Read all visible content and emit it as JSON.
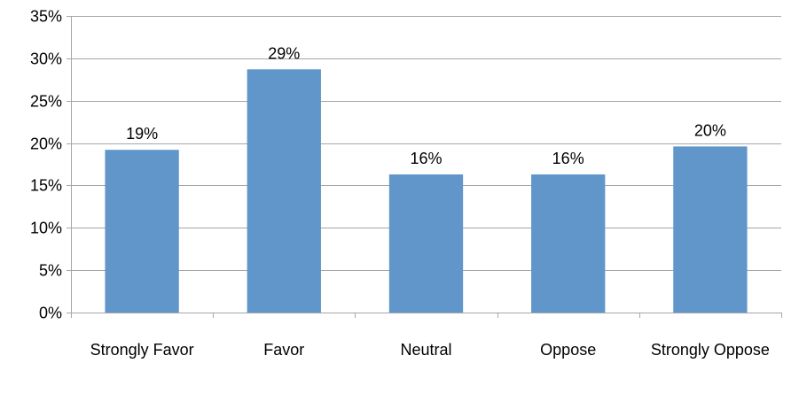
{
  "chart_data": {
    "type": "bar",
    "title": "",
    "xlabel": "",
    "ylabel": "",
    "categories": [
      "Strongly Favor",
      "Favor",
      "Neutral",
      "Oppose",
      "Strongly Oppose"
    ],
    "values": [
      19.2,
      28.7,
      16.3,
      16.3,
      19.6
    ],
    "data_labels": [
      "19%",
      "29%",
      "16%",
      "16%",
      "20%"
    ],
    "ylim": [
      0,
      35
    ],
    "y_ticks": [
      0,
      5,
      10,
      15,
      20,
      25,
      30,
      35
    ],
    "y_tick_labels": [
      "0%",
      "5%",
      "10%",
      "15%",
      "20%",
      "25%",
      "30%",
      "35%"
    ],
    "grid": true,
    "legend": "none",
    "bar_color": "#6096CA",
    "grid_color": "#A6A6A6"
  }
}
